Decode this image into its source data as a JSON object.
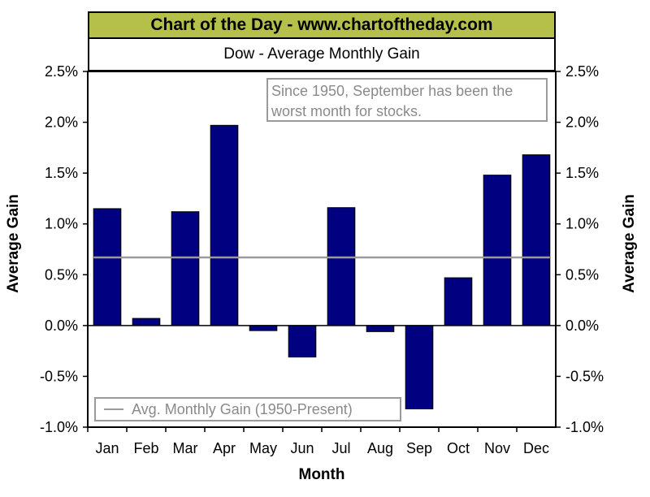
{
  "banner": "Chart of the Day - www.chartoftheday.com",
  "chart_data": {
    "type": "bar",
    "title": "Dow - Average Monthly Gain",
    "xlabel": "Month",
    "ylabel": "Average Gain",
    "ylabel_right": "Average Gain",
    "categories": [
      "Jan",
      "Feb",
      "Mar",
      "Apr",
      "May",
      "Jun",
      "Jul",
      "Aug",
      "Sep",
      "Oct",
      "Nov",
      "Dec"
    ],
    "series": [
      {
        "values": [
          1.15,
          0.07,
          1.12,
          1.97,
          -0.05,
          -0.31,
          1.16,
          -0.06,
          -0.82,
          0.47,
          1.48,
          1.68
        ]
      }
    ],
    "reference_line": {
      "label": "Avg. Monthly Gain (1950-Present)",
      "value": 0.67
    },
    "annotation": "Since 1950, September has been the worst month for stocks.",
    "ylim": [
      -1.0,
      2.5
    ],
    "yticks": [
      "2.5%",
      "2.0%",
      "1.5%",
      "1.0%",
      "0.5%",
      "0.0%",
      "-0.5%",
      "-1.0%"
    ],
    "ytick_values": [
      2.5,
      2.0,
      1.5,
      1.0,
      0.5,
      0.0,
      -0.5,
      -1.0
    ],
    "grid": false,
    "legend_position": "bottom-left",
    "colors": {
      "bar": "#000080",
      "reference_line": "#9a9a9a",
      "banner": "#b5c04a"
    }
  }
}
